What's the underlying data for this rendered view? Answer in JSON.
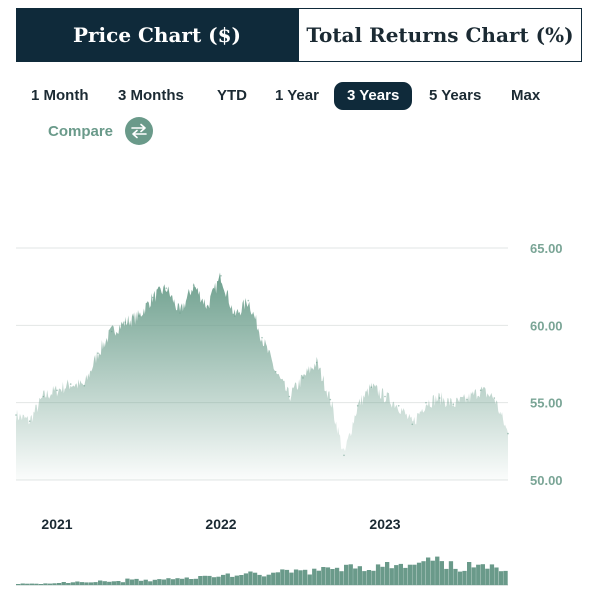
{
  "tabs": [
    {
      "label": "Price Chart ($)",
      "active": true
    },
    {
      "label": "Total Returns Chart (%)",
      "active": false
    }
  ],
  "ranges": [
    {
      "label": "1 Month",
      "active": false
    },
    {
      "label": "3 Months",
      "active": false
    },
    {
      "label": "YTD",
      "active": false
    },
    {
      "label": "1 Year",
      "active": false
    },
    {
      "label": "3 Years",
      "active": true
    },
    {
      "label": "5 Years",
      "active": false
    },
    {
      "label": "Max",
      "active": false
    }
  ],
  "compare": {
    "label": "Compare",
    "icon": "swap-arrows-icon"
  },
  "colors": {
    "accent": "#6a9a8a",
    "navy": "#0f2a3a",
    "area_top": "#6d9f8d",
    "volume": "#6a9a8a"
  },
  "chart_data": {
    "type": "area",
    "x_range": [
      "2020-10",
      "2023-10"
    ],
    "ylim": [
      50,
      65
    ],
    "yticks": [
      "65.00",
      "60.00",
      "55.00",
      "50.00"
    ],
    "grid": true,
    "xticks": [
      {
        "label": "2021",
        "date": "2021-01"
      },
      {
        "label": "2022",
        "date": "2022-01"
      },
      {
        "label": "2023",
        "date": "2023-01"
      }
    ],
    "series": [
      {
        "values": [
          [
            "2020-10",
            54.2
          ],
          [
            "2020-11",
            53.8
          ],
          [
            "2020-12",
            55.4
          ],
          [
            "2021-01",
            55.8
          ],
          [
            "2021-02",
            56.2
          ],
          [
            "2021-03",
            56.1
          ],
          [
            "2021-04",
            58.2
          ],
          [
            "2021-05",
            59.6
          ],
          [
            "2021-06",
            60.2
          ],
          [
            "2021-07",
            60.6
          ],
          [
            "2021-08",
            61.8
          ],
          [
            "2021-09",
            62.4
          ],
          [
            "2021-10",
            60.8
          ],
          [
            "2021-11",
            62.6
          ],
          [
            "2021-12",
            61.2
          ],
          [
            "2022-01",
            63.2
          ],
          [
            "2022-02",
            60.6
          ],
          [
            "2022-03",
            61.6
          ],
          [
            "2022-04",
            59.2
          ],
          [
            "2022-05",
            57.0
          ],
          [
            "2022-06",
            55.4
          ],
          [
            "2022-07",
            56.6
          ],
          [
            "2022-08",
            57.6
          ],
          [
            "2022-09",
            55.2
          ],
          [
            "2022-10",
            51.6
          ],
          [
            "2022-11",
            54.8
          ],
          [
            "2022-12",
            56.0
          ],
          [
            "2023-01",
            55.4
          ],
          [
            "2023-02",
            54.8
          ],
          [
            "2023-03",
            53.6
          ],
          [
            "2023-04",
            55.0
          ],
          [
            "2023-05",
            55.3
          ],
          [
            "2023-06",
            54.9
          ],
          [
            "2023-07",
            55.2
          ],
          [
            "2023-08",
            55.8
          ],
          [
            "2023-09",
            55.3
          ],
          [
            "2023-10",
            53.0
          ]
        ]
      }
    ],
    "volume": [
      [
        "2020-10",
        0.05
      ],
      [
        "2020-11",
        0.05
      ],
      [
        "2020-12",
        0.06
      ],
      [
        "2021-01",
        0.1
      ],
      [
        "2021-02",
        0.12
      ],
      [
        "2021-03",
        0.1
      ],
      [
        "2021-04",
        0.15
      ],
      [
        "2021-05",
        0.14
      ],
      [
        "2021-06",
        0.22
      ],
      [
        "2021-07",
        0.18
      ],
      [
        "2021-08",
        0.24
      ],
      [
        "2021-09",
        0.26
      ],
      [
        "2021-10",
        0.25
      ],
      [
        "2021-11",
        0.34
      ],
      [
        "2021-12",
        0.36
      ],
      [
        "2022-01",
        0.42
      ],
      [
        "2022-02",
        0.4
      ],
      [
        "2022-03",
        0.45
      ],
      [
        "2022-04",
        0.44
      ],
      [
        "2022-05",
        0.52
      ],
      [
        "2022-06",
        0.56
      ],
      [
        "2022-07",
        0.58
      ],
      [
        "2022-08",
        0.62
      ],
      [
        "2022-09",
        0.7
      ],
      [
        "2022-10",
        0.9
      ],
      [
        "2022-11",
        0.7
      ],
      [
        "2022-12",
        0.74
      ],
      [
        "2023-01",
        0.8
      ],
      [
        "2023-02",
        0.75
      ],
      [
        "2023-03",
        0.86
      ],
      [
        "2023-04",
        1.0
      ],
      [
        "2023-05",
        0.8
      ],
      [
        "2023-06",
        0.72
      ],
      [
        "2023-07",
        0.78
      ],
      [
        "2023-08",
        0.7
      ],
      [
        "2023-09",
        0.74
      ],
      [
        "2023-10",
        0.82
      ]
    ]
  }
}
